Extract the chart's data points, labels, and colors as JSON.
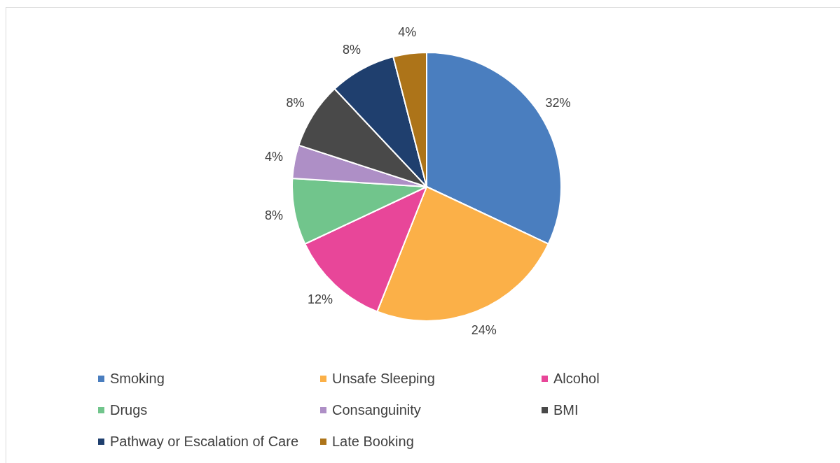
{
  "chart_data": {
    "type": "pie",
    "categories": [
      "Smoking",
      "Unsafe Sleeping",
      "Alcohol",
      "Drugs",
      "Consanguinity",
      "BMI",
      "Pathway or Escalation of Care",
      "Late Booking"
    ],
    "values": [
      32,
      24,
      12,
      8,
      4,
      8,
      8,
      4
    ],
    "colors": [
      "#4a7ebf",
      "#fbb048",
      "#e84699",
      "#71c58c",
      "#ae8fc6",
      "#494949",
      "#1f3f6e",
      "#ad7419"
    ],
    "value_labels": [
      "32%",
      "24%",
      "12%",
      "8%",
      "4%",
      "8%",
      "8%",
      "4%"
    ],
    "legend": "bottom"
  }
}
